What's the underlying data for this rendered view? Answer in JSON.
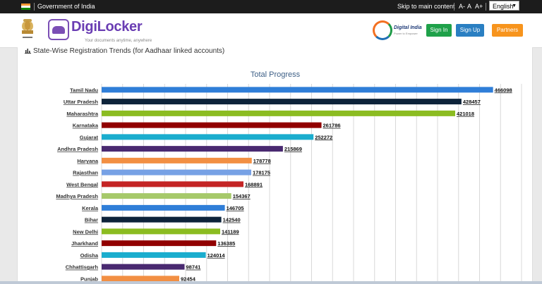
{
  "gov_bar": {
    "text": "Government of India",
    "skip_link": "Skip to main content",
    "font_small": "A-",
    "font_normal": "A",
    "font_large": "A+",
    "language": "English",
    "flag_colors": [
      "#ff9933",
      "#ffffff",
      "#138808"
    ]
  },
  "header": {
    "brand": "DigiLocker",
    "tagline": "Your documents anytime, anywhere",
    "digital_india": "Digital India",
    "digital_india_sub": "Power to Empower",
    "buttons": {
      "sign_in": "Sign In",
      "sign_up": "Sign Up",
      "partners": "Partners"
    },
    "colors": {
      "sign_in": "#1fa14a",
      "sign_up": "#2a7fc2",
      "partners": "#f7941d",
      "brand": "#6a3db3"
    }
  },
  "section": {
    "title": "State-Wise Registration Trends (for Aadhaar linked accounts)"
  },
  "chart_data": {
    "type": "bar",
    "orientation": "horizontal",
    "title": "Total Progress",
    "grid": true,
    "categories": [
      "Tamil Nadu",
      "Uttar Pradesh",
      "Maharashtra",
      "Karnataka",
      "Gujarat",
      "Andhra Pradesh",
      "Haryana",
      "Rajasthan",
      "West Bengal",
      "Madhya Pradesh",
      "Kerala",
      "Bihar",
      "New Delhi",
      "Jharkhand",
      "Odisha",
      "Chhattisgarh",
      "Punjab"
    ],
    "values": [
      466098,
      428457,
      421018,
      261786,
      252272,
      215869,
      178778,
      178175,
      168891,
      154367,
      146705,
      142540,
      141189,
      136385,
      124014,
      98741,
      92454
    ],
    "colors": [
      "#2f7ed8",
      "#0d233a",
      "#8bbc21",
      "#910000",
      "#1aadce",
      "#492970",
      "#f28f43",
      "#77a1e5",
      "#c42525",
      "#a6c96a",
      "#2f7ed8",
      "#0d233a",
      "#8bbc21",
      "#910000",
      "#1aadce",
      "#492970",
      "#f28f43"
    ],
    "xlim": [
      0,
      500000
    ]
  }
}
